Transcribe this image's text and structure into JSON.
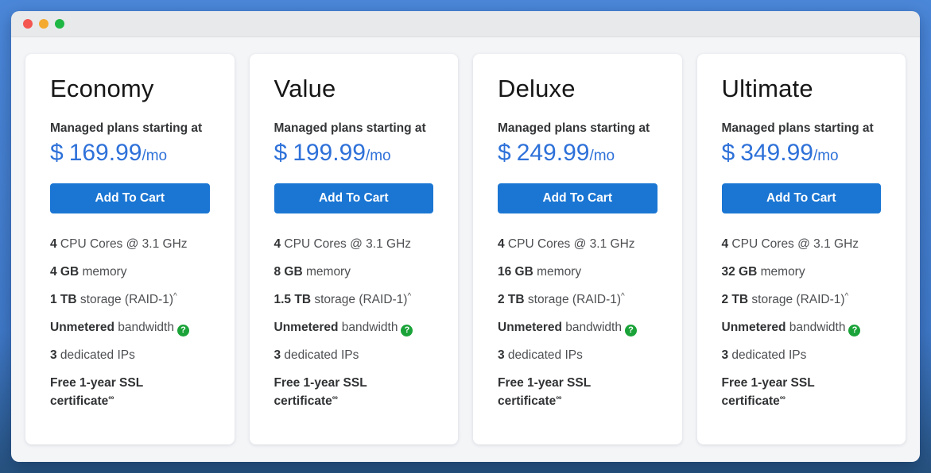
{
  "window": {
    "controls": [
      {
        "name": "close",
        "color": "#f4564f"
      },
      {
        "name": "minimize",
        "color": "#f4a930"
      },
      {
        "name": "maximize",
        "color": "#1fb744"
      }
    ]
  },
  "colors": {
    "background_top": "#4b87d9",
    "background_bottom": "#26517e",
    "price_blue": "#2e71d9",
    "button_blue": "#1b76d3",
    "help_green": "#1aa338"
  },
  "plans": [
    {
      "name": "Economy",
      "tagline": "Managed plans starting at",
      "currency": "$",
      "amount": "169.99",
      "period": "/mo",
      "button_label": "Add To Cart",
      "features": [
        {
          "bold": "4",
          "regular": "CPU Cores @ 3.1 GHz"
        },
        {
          "bold": "4 GB",
          "regular": "memory"
        },
        {
          "bold": "1 TB",
          "regular": "storage (RAID-1)",
          "sup": "^"
        },
        {
          "bold": "Unmetered",
          "regular": "bandwidth",
          "icon": "help-icon",
          "icon_glyph": "?"
        },
        {
          "bold": "3",
          "regular": "dedicated IPs"
        },
        {
          "bold": "Free 1-year SSL certificate",
          "regular": "",
          "sup": "∞",
          "sup_bold": true
        }
      ]
    },
    {
      "name": "Value",
      "tagline": "Managed plans starting at",
      "currency": "$",
      "amount": "199.99",
      "period": "/mo",
      "button_label": "Add To Cart",
      "features": [
        {
          "bold": "4",
          "regular": "CPU Cores @ 3.1 GHz"
        },
        {
          "bold": "8 GB",
          "regular": "memory"
        },
        {
          "bold": "1.5 TB",
          "regular": "storage (RAID-1)",
          "sup": "^"
        },
        {
          "bold": "Unmetered",
          "regular": "bandwidth",
          "icon": "help-icon",
          "icon_glyph": "?"
        },
        {
          "bold": "3",
          "regular": "dedicated IPs"
        },
        {
          "bold": "Free 1-year SSL certificate",
          "regular": "",
          "sup": "∞",
          "sup_bold": true
        }
      ]
    },
    {
      "name": "Deluxe",
      "tagline": "Managed plans starting at",
      "currency": "$",
      "amount": "249.99",
      "period": "/mo",
      "button_label": "Add To Cart",
      "features": [
        {
          "bold": "4",
          "regular": "CPU Cores @ 3.1 GHz"
        },
        {
          "bold": "16 GB",
          "regular": "memory"
        },
        {
          "bold": "2 TB",
          "regular": "storage (RAID-1)",
          "sup": "^"
        },
        {
          "bold": "Unmetered",
          "regular": "bandwidth",
          "icon": "help-icon",
          "icon_glyph": "?"
        },
        {
          "bold": "3",
          "regular": "dedicated IPs"
        },
        {
          "bold": "Free 1-year SSL certificate",
          "regular": "",
          "sup": "∞",
          "sup_bold": true
        }
      ]
    },
    {
      "name": "Ultimate",
      "tagline": "Managed plans starting at",
      "currency": "$",
      "amount": "349.99",
      "period": "/mo",
      "button_label": "Add To Cart",
      "features": [
        {
          "bold": "4",
          "regular": "CPU Cores @ 3.1 GHz"
        },
        {
          "bold": "32 GB",
          "regular": "memory"
        },
        {
          "bold": "2 TB",
          "regular": "storage (RAID-1)",
          "sup": "^"
        },
        {
          "bold": "Unmetered",
          "regular": "bandwidth",
          "icon": "help-icon",
          "icon_glyph": "?"
        },
        {
          "bold": "3",
          "regular": "dedicated IPs"
        },
        {
          "bold": "Free 1-year SSL certificate",
          "regular": "",
          "sup": "∞",
          "sup_bold": true
        }
      ]
    }
  ]
}
